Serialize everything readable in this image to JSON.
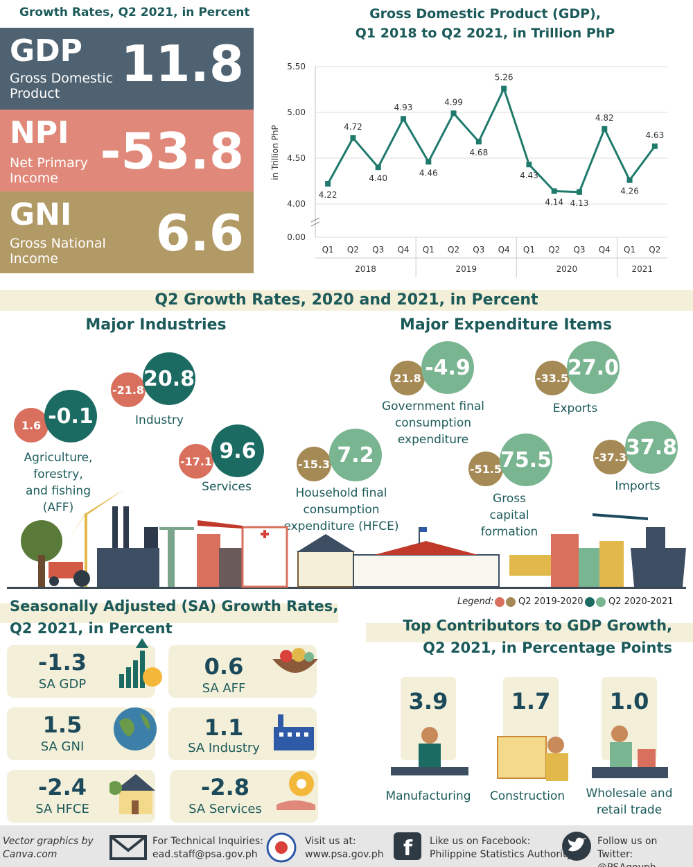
{
  "headline": {
    "title": "Growth Rates, Q2 2021, in Percent",
    "kpis": [
      {
        "abbr": "GDP",
        "full1": "Gross Domestic",
        "full2": "Product",
        "value": "11.8",
        "color": "#4f6271"
      },
      {
        "abbr": "NPI",
        "full1": "Net Primary",
        "full2": "Income",
        "value": "-53.8",
        "color": "#e0897a"
      },
      {
        "abbr": "GNI",
        "full1": "Gross National",
        "full2": "Income",
        "value": "6.6",
        "color": "#b29a66"
      }
    ]
  },
  "gdp_chart": {
    "title1": "Gross Domestic Product (GDP),",
    "title2": "Q1 2018 to Q2 2021, in Trillion PhP",
    "ylabel": "in Trillion PhP"
  },
  "chart_data": {
    "type": "line",
    "title": "Gross Domestic Product (GDP), Q1 2018 to Q2 2021, in Trillion PhP",
    "ylabel": "in Trillion PhP",
    "x": [
      "Q1",
      "Q2",
      "Q3",
      "Q4",
      "Q1",
      "Q2",
      "Q3",
      "Q4",
      "Q1",
      "Q2",
      "Q3",
      "Q4",
      "Q1",
      "Q2"
    ],
    "years": [
      {
        "label": "2018",
        "span": 4
      },
      {
        "label": "2019",
        "span": 4
      },
      {
        "label": "2020",
        "span": 4
      },
      {
        "label": "2021",
        "span": 2
      }
    ],
    "values": [
      4.22,
      4.72,
      4.4,
      4.93,
      4.46,
      4.99,
      4.68,
      5.26,
      4.43,
      4.14,
      4.13,
      4.82,
      4.26,
      4.63
    ],
    "value_labels": [
      "4.22",
      "4.72",
      "4.40",
      "4.93",
      "4.46",
      "4.99",
      "4.68",
      "5.26",
      "4.43",
      "4.14",
      "4.13",
      "4.82",
      "4.26",
      "4.63"
    ],
    "yticks": [
      "5.50",
      "5.00",
      "4.50",
      "4.00",
      "0.00"
    ],
    "ylim": [
      4.0,
      5.5
    ],
    "axis_break": true,
    "color": "#1e7a6b",
    "grid": true
  },
  "q2": {
    "title": "Q2 Growth Rates, 2020 and 2021, in Percent",
    "industries_title": "Major Industries",
    "expenditure_title": "Major Expenditure Items",
    "industries": [
      {
        "label": "Industry",
        "v2020": "-21.8",
        "v2021": "20.8"
      },
      {
        "label1": "Agriculture,",
        "label2": "forestry,",
        "label3": "and fishing",
        "label4": "(AFF)",
        "v2020": "1.6",
        "v2021": "-0.1"
      },
      {
        "label": "Services",
        "v2020": "-17.1",
        "v2021": "9.6"
      }
    ],
    "expenditures": [
      {
        "label1": "Government final",
        "label2": "consumption",
        "label3": "expenditure",
        "v2020": "21.8",
        "v2021": "-4.9"
      },
      {
        "label": "Exports",
        "v2020": "-33.5",
        "v2021": "27.0"
      },
      {
        "label1": "Household final",
        "label2": "consumption",
        "label3": "expenditure (HFCE)",
        "v2020": "-15.3",
        "v2021": "7.2"
      },
      {
        "label1": "Gross",
        "label2": "capital",
        "label3": "formation",
        "v2020": "-51.5",
        "v2021": "75.5"
      },
      {
        "label": "Imports",
        "v2020": "-37.3",
        "v2021": "37.8"
      }
    ],
    "legend": {
      "label": "Legend:",
      "a": "Q2 2019-2020",
      "b": "Q2 2020-2021"
    }
  },
  "sa": {
    "title1": "Seasonally Adjusted (SA) Growth Rates,",
    "title2": "Q2 2021, in Percent",
    "items": [
      {
        "value": "-1.3",
        "label": "SA GDP"
      },
      {
        "value": "0.6",
        "label": "SA AFF"
      },
      {
        "value": "1.5",
        "label": "SA GNI"
      },
      {
        "value": "1.1",
        "label": "SA Industry"
      },
      {
        "value": "-2.4",
        "label": "SA HFCE"
      },
      {
        "value": "-2.8",
        "label": "SA Services"
      }
    ]
  },
  "contrib": {
    "title1": "Top Contributors to GDP Growth,",
    "title2": "Q2 2021, in Percentage Points",
    "items": [
      {
        "value": "3.9",
        "label": "Manufacturing"
      },
      {
        "value": "1.7",
        "label": "Construction"
      },
      {
        "value": "1.0",
        "label1": "Wholesale and",
        "label2": "retail trade"
      }
    ]
  },
  "footer": {
    "credit1": "Vector graphics by",
    "credit2": "Canva.com",
    "inq1": "For Technical Inquiries:",
    "inq2": "ead.staff@psa.gov.ph",
    "visit1": "Visit us at:",
    "visit2": "www.psa.gov.ph",
    "fb1": "Like us on Facebook:",
    "fb2": "Philippine Statistics Authority",
    "tw1": "Follow us on Twitter:",
    "tw2": "@PSAgovph"
  }
}
